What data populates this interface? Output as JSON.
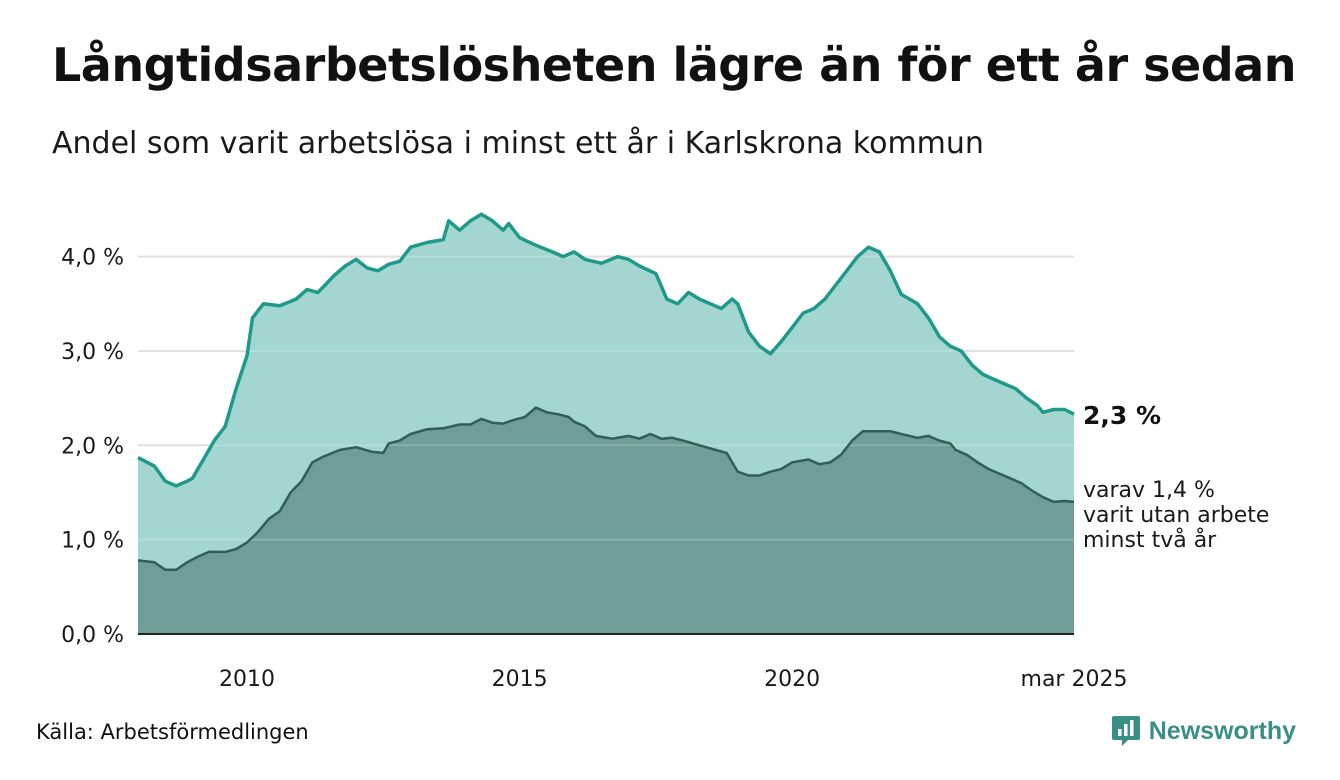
{
  "header": {
    "title": "Långtidsarbetslösheten lägre än för ett år sedan",
    "subtitle": "Andel som varit arbetslösa i minst ett år i Karlskrona kommun"
  },
  "footer": {
    "source": "Källa: Arbetsförmedlingen",
    "brand": "Newsworthy"
  },
  "colors": {
    "series1_line": "#1f9a8a",
    "series1_fill": "#a3d6d0",
    "series2_line": "#2f5f58",
    "series2_fill": "#6f9e98",
    "grid": "#d9d9d9",
    "brand": "#3a8f84"
  },
  "chart_data": {
    "type": "area",
    "title": "Långtidsarbetslösheten lägre än för ett år sedan",
    "subtitle": "Andel som varit arbetslösa i minst ett år i Karlskrona kommun",
    "x_ticks": [
      {
        "value": 2010.0,
        "label": "2010"
      },
      {
        "value": 2015.0,
        "label": "2015"
      },
      {
        "value": 2020.0,
        "label": "2020"
      },
      {
        "value": 2025.17,
        "label": "mar 2025"
      }
    ],
    "y_ticks": [
      {
        "value": 0,
        "label": "0,0 %"
      },
      {
        "value": 1,
        "label": "1,0 %"
      },
      {
        "value": 2,
        "label": "2,0 %"
      },
      {
        "value": 3,
        "label": "3,0 %"
      },
      {
        "value": 4,
        "label": "4,0 %"
      }
    ],
    "xlim": [
      2008.0,
      2025.17
    ],
    "ylim": [
      0,
      4.6
    ],
    "grid": true,
    "end_labels": {
      "main": "2,3 %",
      "sub": [
        "varav 1,4 %",
        "varit utan arbete",
        "minst två år"
      ]
    },
    "series": [
      {
        "name": "",
        "role": "total",
        "points": [
          [
            2008.0,
            1.87
          ],
          [
            2008.3,
            1.78
          ],
          [
            2008.5,
            1.62
          ],
          [
            2008.7,
            1.57
          ],
          [
            2008.9,
            1.62
          ],
          [
            2009.0,
            1.65
          ],
          [
            2009.2,
            1.85
          ],
          [
            2009.4,
            2.05
          ],
          [
            2009.6,
            2.2
          ],
          [
            2009.8,
            2.6
          ],
          [
            2010.0,
            2.95
          ],
          [
            2010.1,
            3.35
          ],
          [
            2010.3,
            3.5
          ],
          [
            2010.6,
            3.48
          ],
          [
            2010.9,
            3.55
          ],
          [
            2011.1,
            3.65
          ],
          [
            2011.3,
            3.62
          ],
          [
            2011.6,
            3.8
          ],
          [
            2011.8,
            3.9
          ],
          [
            2012.0,
            3.97
          ],
          [
            2012.2,
            3.88
          ],
          [
            2012.4,
            3.85
          ],
          [
            2012.6,
            3.92
          ],
          [
            2012.8,
            3.95
          ],
          [
            2013.0,
            4.1
          ],
          [
            2013.3,
            4.15
          ],
          [
            2013.6,
            4.18
          ],
          [
            2013.7,
            4.38
          ],
          [
            2013.9,
            4.28
          ],
          [
            2014.1,
            4.38
          ],
          [
            2014.3,
            4.45
          ],
          [
            2014.5,
            4.38
          ],
          [
            2014.7,
            4.28
          ],
          [
            2014.8,
            4.35
          ],
          [
            2015.0,
            4.2
          ],
          [
            2015.3,
            4.12
          ],
          [
            2015.6,
            4.05
          ],
          [
            2015.8,
            4.0
          ],
          [
            2016.0,
            4.05
          ],
          [
            2016.2,
            3.97
          ],
          [
            2016.5,
            3.93
          ],
          [
            2016.8,
            4.0
          ],
          [
            2017.0,
            3.97
          ],
          [
            2017.2,
            3.9
          ],
          [
            2017.5,
            3.82
          ],
          [
            2017.7,
            3.55
          ],
          [
            2017.9,
            3.5
          ],
          [
            2018.1,
            3.62
          ],
          [
            2018.3,
            3.55
          ],
          [
            2018.5,
            3.5
          ],
          [
            2018.7,
            3.45
          ],
          [
            2018.9,
            3.55
          ],
          [
            2019.0,
            3.5
          ],
          [
            2019.2,
            3.2
          ],
          [
            2019.4,
            3.05
          ],
          [
            2019.6,
            2.97
          ],
          [
            2019.8,
            3.1
          ],
          [
            2020.0,
            3.25
          ],
          [
            2020.2,
            3.4
          ],
          [
            2020.4,
            3.45
          ],
          [
            2020.6,
            3.55
          ],
          [
            2020.8,
            3.7
          ],
          [
            2021.0,
            3.85
          ],
          [
            2021.2,
            4.0
          ],
          [
            2021.4,
            4.1
          ],
          [
            2021.6,
            4.05
          ],
          [
            2021.8,
            3.85
          ],
          [
            2022.0,
            3.6
          ],
          [
            2022.3,
            3.5
          ],
          [
            2022.5,
            3.35
          ],
          [
            2022.7,
            3.15
          ],
          [
            2022.9,
            3.05
          ],
          [
            2023.1,
            3.0
          ],
          [
            2023.3,
            2.85
          ],
          [
            2023.5,
            2.75
          ],
          [
            2023.7,
            2.7
          ],
          [
            2023.9,
            2.65
          ],
          [
            2024.1,
            2.6
          ],
          [
            2024.3,
            2.5
          ],
          [
            2024.5,
            2.42
          ],
          [
            2024.6,
            2.35
          ],
          [
            2024.8,
            2.38
          ],
          [
            2025.0,
            2.38
          ],
          [
            2025.17,
            2.33
          ]
        ]
      },
      {
        "name": "",
        "role": "subset",
        "points": [
          [
            2008.0,
            0.78
          ],
          [
            2008.3,
            0.76
          ],
          [
            2008.5,
            0.68
          ],
          [
            2008.7,
            0.68
          ],
          [
            2008.9,
            0.76
          ],
          [
            2009.1,
            0.82
          ],
          [
            2009.3,
            0.87
          ],
          [
            2009.6,
            0.87
          ],
          [
            2009.8,
            0.9
          ],
          [
            2010.0,
            0.97
          ],
          [
            2010.2,
            1.08
          ],
          [
            2010.4,
            1.22
          ],
          [
            2010.6,
            1.3
          ],
          [
            2010.8,
            1.5
          ],
          [
            2011.0,
            1.62
          ],
          [
            2011.2,
            1.82
          ],
          [
            2011.4,
            1.88
          ],
          [
            2011.7,
            1.95
          ],
          [
            2012.0,
            1.98
          ],
          [
            2012.3,
            1.93
          ],
          [
            2012.5,
            1.92
          ],
          [
            2012.6,
            2.02
          ],
          [
            2012.8,
            2.05
          ],
          [
            2013.0,
            2.12
          ],
          [
            2013.3,
            2.17
          ],
          [
            2013.6,
            2.18
          ],
          [
            2013.9,
            2.22
          ],
          [
            2014.1,
            2.22
          ],
          [
            2014.3,
            2.28
          ],
          [
            2014.5,
            2.24
          ],
          [
            2014.7,
            2.23
          ],
          [
            2014.9,
            2.27
          ],
          [
            2015.1,
            2.3
          ],
          [
            2015.3,
            2.4
          ],
          [
            2015.5,
            2.35
          ],
          [
            2015.7,
            2.33
          ],
          [
            2015.9,
            2.3
          ],
          [
            2016.0,
            2.25
          ],
          [
            2016.2,
            2.2
          ],
          [
            2016.4,
            2.1
          ],
          [
            2016.7,
            2.07
          ],
          [
            2017.0,
            2.1
          ],
          [
            2017.2,
            2.07
          ],
          [
            2017.4,
            2.12
          ],
          [
            2017.6,
            2.07
          ],
          [
            2017.8,
            2.08
          ],
          [
            2018.0,
            2.05
          ],
          [
            2018.3,
            2.0
          ],
          [
            2018.6,
            1.95
          ],
          [
            2018.8,
            1.92
          ],
          [
            2019.0,
            1.72
          ],
          [
            2019.2,
            1.68
          ],
          [
            2019.4,
            1.68
          ],
          [
            2019.6,
            1.72
          ],
          [
            2019.8,
            1.75
          ],
          [
            2020.0,
            1.82
          ],
          [
            2020.3,
            1.85
          ],
          [
            2020.5,
            1.8
          ],
          [
            2020.7,
            1.82
          ],
          [
            2020.9,
            1.9
          ],
          [
            2021.1,
            2.05
          ],
          [
            2021.3,
            2.15
          ],
          [
            2021.6,
            2.15
          ],
          [
            2021.8,
            2.15
          ],
          [
            2022.0,
            2.12
          ],
          [
            2022.3,
            2.08
          ],
          [
            2022.5,
            2.1
          ],
          [
            2022.7,
            2.05
          ],
          [
            2022.9,
            2.02
          ],
          [
            2023.0,
            1.95
          ],
          [
            2023.2,
            1.9
          ],
          [
            2023.4,
            1.82
          ],
          [
            2023.6,
            1.75
          ],
          [
            2023.8,
            1.7
          ],
          [
            2024.0,
            1.65
          ],
          [
            2024.2,
            1.6
          ],
          [
            2024.4,
            1.52
          ],
          [
            2024.6,
            1.45
          ],
          [
            2024.8,
            1.4
          ],
          [
            2025.0,
            1.41
          ],
          [
            2025.17,
            1.4
          ]
        ]
      }
    ]
  }
}
